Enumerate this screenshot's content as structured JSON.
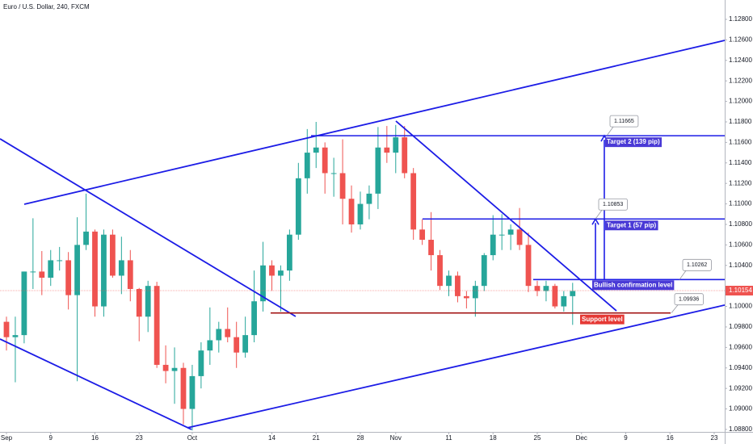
{
  "chart_data": {
    "type": "candlestick",
    "title": "Euro / U.S. Dollar, 240, FXCM",
    "up_color": "#26a69a",
    "down_color": "#ef5350",
    "grid": false,
    "xlim": [
      -0.73,
      81.19
    ],
    "ylim": [
      1.08776,
      1.12989
    ],
    "xticks": [
      {
        "value": 0,
        "label": "Sep"
      },
      {
        "value": 5,
        "label": "9"
      },
      {
        "value": 10,
        "label": "16"
      },
      {
        "value": 15,
        "label": "23"
      },
      {
        "value": 21,
        "label": "Oct"
      },
      {
        "value": 30,
        "label": "14"
      },
      {
        "value": 35,
        "label": "21"
      },
      {
        "value": 40,
        "label": "28"
      },
      {
        "value": 44,
        "label": "Nov"
      },
      {
        "value": 50,
        "label": "11"
      },
      {
        "value": 55,
        "label": "18"
      },
      {
        "value": 60,
        "label": "25"
      },
      {
        "value": 65,
        "label": "Dec"
      },
      {
        "value": 70,
        "label": "9"
      },
      {
        "value": 75,
        "label": "16"
      },
      {
        "value": 80,
        "label": "23"
      }
    ],
    "yticks": [
      {
        "value": 1.128,
        "label": "1.12800"
      },
      {
        "value": 1.126,
        "label": "1.12600"
      },
      {
        "value": 1.124,
        "label": "1.12400"
      },
      {
        "value": 1.122,
        "label": "1.12200"
      },
      {
        "value": 1.12,
        "label": "1.12000"
      },
      {
        "value": 1.118,
        "label": "1.11800"
      },
      {
        "value": 1.116,
        "label": "1.11600"
      },
      {
        "value": 1.114,
        "label": "1.11400"
      },
      {
        "value": 1.112,
        "label": "1.11200"
      },
      {
        "value": 1.11,
        "label": "1.11000"
      },
      {
        "value": 1.108,
        "label": "1.10800"
      },
      {
        "value": 1.106,
        "label": "1.10600"
      },
      {
        "value": 1.104,
        "label": "1.10400"
      },
      {
        "value": 1.1,
        "label": "1.10000"
      },
      {
        "value": 1.098,
        "label": "1.09800"
      },
      {
        "value": 1.096,
        "label": "1.09600"
      },
      {
        "value": 1.094,
        "label": "1.09400"
      },
      {
        "value": 1.092,
        "label": "1.09200"
      },
      {
        "value": 1.09,
        "label": "1.09000"
      },
      {
        "value": 1.088,
        "label": "1.08800"
      }
    ],
    "x": [
      0,
      1,
      2,
      3,
      4,
      5,
      6,
      7,
      8,
      9,
      10,
      11,
      12,
      13,
      14,
      15,
      16,
      17,
      18,
      19,
      20,
      21,
      22,
      23,
      24,
      25,
      26,
      27,
      28,
      29,
      30,
      31,
      32,
      33,
      34,
      35,
      36,
      37,
      38,
      39,
      40,
      41,
      42,
      43,
      44,
      45,
      46,
      47,
      48,
      49,
      50,
      51,
      52,
      53,
      54,
      55,
      56,
      57,
      58,
      59,
      60,
      61,
      62,
      63,
      64
    ],
    "open": [
      1.0985,
      1.097,
      1.0972,
      1.1034,
      1.1034,
      1.1028,
      1.1045,
      1.1045,
      1.1011,
      1.106,
      1.1073,
      1.1,
      1.107,
      1.103,
      1.1045,
      1.1017,
      1.099,
      1.102,
      1.0943,
      1.0937,
      1.094,
      1.09,
      1.0932,
      1.0957,
      1.0967,
      1.0978,
      1.097,
      1.0955,
      1.0972,
      1.1005,
      1.104,
      1.103,
      1.1035,
      1.107,
      1.1125,
      1.115,
      1.1155,
      1.113,
      1.113,
      1.1105,
      1.108,
      1.11,
      1.111,
      1.1155,
      1.115,
      1.1165,
      1.113,
      1.1075,
      1.1065,
      1.105,
      1.102,
      1.103,
      1.101,
      1.1008,
      1.102,
      1.105,
      1.107,
      1.107,
      1.1075,
      1.106,
      1.102,
      1.1015,
      1.102,
      1.1,
      1.101
    ],
    "high": [
      1.099,
      1.099,
      1.1034,
      1.1086,
      1.1054,
      1.1055,
      1.1058,
      1.1053,
      1.1087,
      1.111,
      1.1075,
      1.1075,
      1.1075,
      1.1068,
      1.1055,
      1.1018,
      1.1025,
      1.1024,
      1.0962,
      1.096,
      1.0945,
      1.0943,
      1.0965,
      1.0999,
      1.0985,
      1.0999,
      1.0985,
      1.099,
      1.1035,
      1.1063,
      1.1045,
      1.104,
      1.1075,
      1.114,
      1.1173,
      1.118,
      1.116,
      1.1145,
      1.1163,
      1.1118,
      1.1112,
      1.1118,
      1.1175,
      1.1176,
      1.1177,
      1.1176,
      1.1135,
      1.1085,
      1.1092,
      1.1055,
      1.1035,
      1.1034,
      1.1015,
      1.1025,
      1.1052,
      1.1089,
      1.109,
      1.108,
      1.1096,
      1.1072,
      1.1025,
      1.1025,
      1.1022,
      1.1015,
      1.1023
    ],
    "low": [
      1.0957,
      1.0926,
      1.0964,
      1.1017,
      1.1011,
      1.102,
      1.1035,
      1.0997,
      1.0927,
      1.1055,
      1.099,
      1.099,
      1.1028,
      1.1012,
      1.1005,
      1.0966,
      1.0975,
      1.094,
      1.0925,
      1.0905,
      1.0885,
      1.0879,
      1.092,
      1.0943,
      1.0955,
      1.0965,
      1.094,
      1.095,
      1.0965,
      1.0995,
      1.1015,
      1.0995,
      1.1025,
      1.1065,
      1.111,
      1.1135,
      1.111,
      1.1107,
      1.108,
      1.1072,
      1.1075,
      1.1085,
      1.1095,
      1.114,
      1.113,
      1.1125,
      1.1065,
      1.106,
      1.1035,
      1.1016,
      1.101,
      1.1004,
      1.0998,
      1.099,
      1.1015,
      1.1045,
      1.1055,
      1.1055,
      1.1055,
      1.1014,
      1.101,
      1.1005,
      1.0998,
      1.0995,
      1.0982
    ],
    "close": [
      1.097,
      1.0972,
      1.1034,
      1.1034,
      1.1028,
      1.1045,
      1.1045,
      1.1011,
      1.106,
      1.1073,
      1.1,
      1.107,
      1.103,
      1.1045,
      1.1017,
      1.099,
      1.102,
      1.0943,
      1.0937,
      1.094,
      1.09,
      1.0932,
      1.0957,
      1.0967,
      1.0978,
      1.097,
      1.0955,
      1.0972,
      1.1005,
      1.104,
      1.103,
      1.1035,
      1.107,
      1.1125,
      1.115,
      1.1155,
      1.113,
      1.113,
      1.1105,
      1.108,
      1.11,
      1.111,
      1.1155,
      1.115,
      1.1165,
      1.113,
      1.1075,
      1.1065,
      1.105,
      1.102,
      1.103,
      1.101,
      1.1008,
      1.102,
      1.105,
      1.107,
      1.107,
      1.1075,
      1.106,
      1.102,
      1.1015,
      1.102,
      1.1,
      1.101,
      1.1015
    ],
    "last_price": {
      "value": 1.10154,
      "label": "1.10154",
      "color": "#ef5350"
    },
    "trendlines": [
      {
        "color": "#1c1ce6",
        "x": [
          2.01,
          81.19
        ],
        "y": [
          1.10997,
          1.12595
        ]
      },
      {
        "color": "#1c1ce6",
        "x": [
          20.46,
          81.19
        ],
        "y": [
          1.08816,
          1.10013
        ]
      },
      {
        "color": "#1c1ce6",
        "x": [
          -0.73,
          32.69
        ],
        "y": [
          1.11635,
          1.09902
        ]
      },
      {
        "color": "#1c1ce6",
        "x": [
          -0.73,
          20.91
        ],
        "y": [
          1.09682,
          1.088
        ]
      },
      {
        "color": "#1c1ce6",
        "x": [
          44.02,
          68.95
        ],
        "y": [
          1.11808,
          1.09957
        ]
      }
    ],
    "levels": [
      {
        "value": 1.11665,
        "price_label": "1.11665",
        "label": "Target 2 (139 pip)",
        "start": 34.43,
        "end": 81.19,
        "color": "#1c1ce6",
        "label_color": "#4a3ad6",
        "arrow_x": 67.58
      },
      {
        "value": 1.10853,
        "price_label": "1.10853",
        "label": "Target 1 (57 pip)",
        "start": 47.03,
        "end": 81.19,
        "color": "#1c1ce6",
        "label_color": "#4a3ad6",
        "arrow_x": 66.58
      },
      {
        "value": 1.10262,
        "price_label": "1.10262",
        "label": "Bullish confirmation level",
        "start": 59.54,
        "end": 81.19,
        "color": "#1c1ce6",
        "label_color": "#4a3ad6"
      },
      {
        "value": 1.09936,
        "price_label": "1.09936",
        "label": "Support level",
        "start": 29.86,
        "end": 75.07,
        "color": "#a31515",
        "label_color": "#e53935"
      }
    ]
  }
}
